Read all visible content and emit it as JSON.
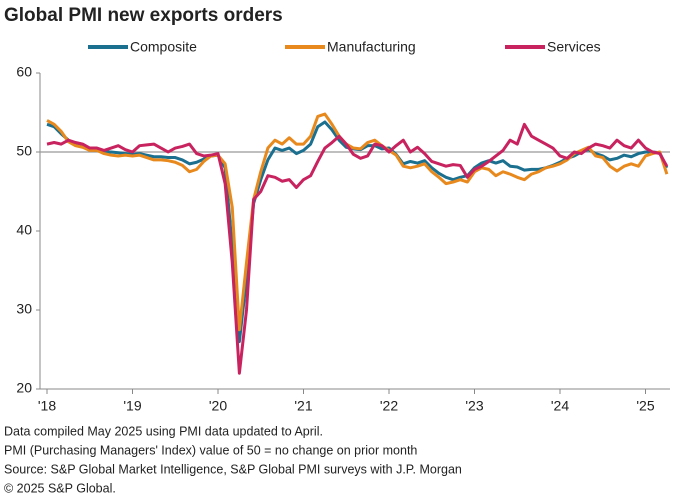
{
  "chart_data": {
    "type": "line",
    "title": "Global PMI new exports orders",
    "categories": [
      "'18",
      null,
      null,
      null,
      null,
      null,
      null,
      null,
      null,
      null,
      null,
      null,
      "'19",
      null,
      null,
      null,
      null,
      null,
      null,
      null,
      null,
      null,
      null,
      null,
      "'20",
      null,
      null,
      null,
      null,
      null,
      null,
      null,
      null,
      null,
      null,
      null,
      "'21",
      null,
      null,
      null,
      null,
      null,
      null,
      null,
      null,
      null,
      null,
      null,
      "'22",
      null,
      null,
      null,
      null,
      null,
      null,
      null,
      null,
      null,
      null,
      null,
      "'23",
      null,
      null,
      null,
      null,
      null,
      null,
      null,
      null,
      null,
      null,
      null,
      "'24",
      null,
      null,
      null,
      null,
      null,
      null,
      null,
      null,
      null,
      null,
      null,
      "'25",
      null,
      null,
      null
    ],
    "series": [
      {
        "name": "Composite",
        "color": "#1b6f8f",
        "values": [
          53.5,
          53.2,
          52.3,
          51.5,
          51.0,
          50.8,
          50.3,
          50.2,
          50.0,
          50.0,
          49.9,
          49.8,
          49.7,
          49.8,
          49.6,
          49.4,
          49.4,
          49.3,
          49.3,
          49.0,
          48.5,
          48.7,
          49.1,
          49.5,
          49.6,
          48.0,
          38.0,
          26.0,
          34.0,
          43.5,
          46.5,
          49.0,
          50.5,
          50.2,
          50.5,
          49.8,
          50.2,
          51.0,
          53.2,
          53.8,
          52.8,
          51.5,
          50.6,
          50.4,
          50.3,
          50.8,
          50.8,
          50.4,
          50.5,
          49.7,
          48.5,
          48.8,
          48.6,
          48.9,
          48.0,
          47.3,
          46.8,
          46.5,
          46.8,
          47.0,
          48.0,
          48.6,
          48.9,
          48.6,
          48.9,
          48.2,
          48.1,
          47.7,
          47.8,
          47.8,
          48.0,
          48.3,
          48.7,
          49.2,
          49.5,
          50.0,
          50.3,
          49.8,
          49.5,
          49.0,
          49.2,
          49.6,
          49.4,
          49.8,
          50.0,
          50.0,
          49.9,
          48.0
        ]
      },
      {
        "name": "Manufacturing",
        "color": "#e8891d",
        "values": [
          54.0,
          53.5,
          52.6,
          51.3,
          50.8,
          50.6,
          50.2,
          50.2,
          49.8,
          49.6,
          49.5,
          49.6,
          49.5,
          49.6,
          49.3,
          49.0,
          49.0,
          48.9,
          48.7,
          48.3,
          47.5,
          47.8,
          48.8,
          49.5,
          49.6,
          48.5,
          43.0,
          27.5,
          36.0,
          44.0,
          47.5,
          50.5,
          51.5,
          51.0,
          51.8,
          51.0,
          51.0,
          52.0,
          54.5,
          54.8,
          53.5,
          52.0,
          51.0,
          50.5,
          50.4,
          51.2,
          51.5,
          50.8,
          50.2,
          49.6,
          48.2,
          48.0,
          48.2,
          48.5,
          47.5,
          46.8,
          46.0,
          46.2,
          46.5,
          46.2,
          47.5,
          48.0,
          47.8,
          47.0,
          47.5,
          47.2,
          46.8,
          46.5,
          47.2,
          47.5,
          48.0,
          48.2,
          48.5,
          49.0,
          49.8,
          50.2,
          50.6,
          49.5,
          49.3,
          48.2,
          47.6,
          48.2,
          48.5,
          48.2,
          49.5,
          49.8,
          50.0,
          47.2
        ]
      },
      {
        "name": "Services",
        "color": "#c8235f",
        "values": [
          51.0,
          51.2,
          51.0,
          51.5,
          51.2,
          51.0,
          50.5,
          50.5,
          50.2,
          50.5,
          50.8,
          50.3,
          50.0,
          50.8,
          50.9,
          51.0,
          50.5,
          50.0,
          50.5,
          50.7,
          51.0,
          49.8,
          49.5,
          49.6,
          49.8,
          46.0,
          36.0,
          22.0,
          30.0,
          44.0,
          45.0,
          47.0,
          46.8,
          46.3,
          46.5,
          45.5,
          46.5,
          47.0,
          48.8,
          50.5,
          51.2,
          52.0,
          51.0,
          49.7,
          49.2,
          49.5,
          51.0,
          50.8,
          50.0,
          50.8,
          51.5,
          50.0,
          50.6,
          49.8,
          48.8,
          48.5,
          48.2,
          48.4,
          48.3,
          46.8,
          47.8,
          48.2,
          48.8,
          49.5,
          50.2,
          51.5,
          51.0,
          53.5,
          52.0,
          51.5,
          51.0,
          50.5,
          49.5,
          49.2,
          50.0,
          49.8,
          50.5,
          51.0,
          50.8,
          50.5,
          51.5,
          50.8,
          50.5,
          51.5,
          50.5,
          50.0,
          49.8,
          48.2
        ]
      }
    ],
    "ylim": [
      20,
      60
    ],
    "yticks": [
      20,
      30,
      40,
      50,
      60
    ],
    "reference_line": 50,
    "notes": [
      "Data compiled May 2025 using PMI data updated to April.",
      "PMI (Purchasing Managers' Index) value of 50 = no change on prior month",
      "Source: S&P Global Market Intelligence, S&P Global PMI surveys with J.P. Morgan",
      "© 2025 S&P Global."
    ]
  }
}
